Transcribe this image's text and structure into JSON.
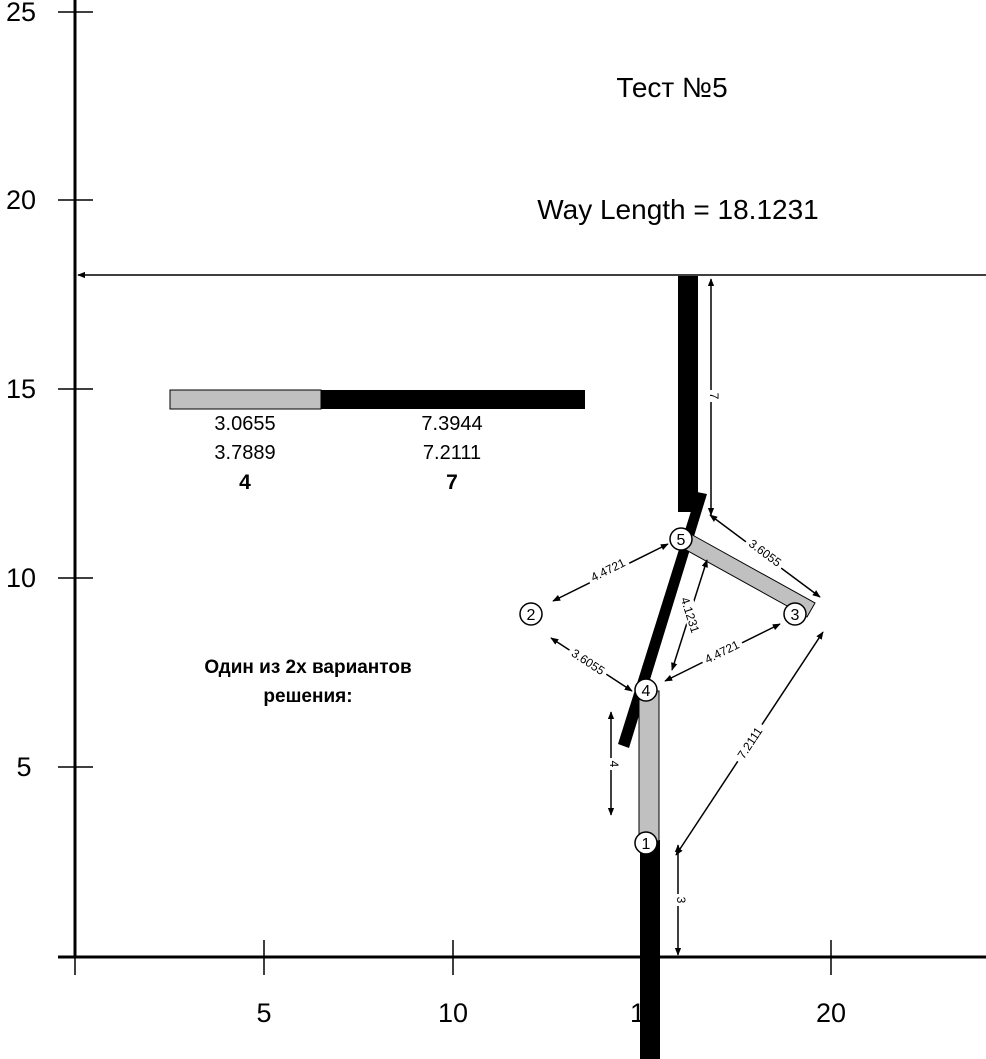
{
  "title": "Тест №5",
  "way_length": "Way Length = 18.1231",
  "caption": [
    "Один из 2х вариантов",
    "решения:"
  ],
  "axes": {
    "x_ticks": [
      "5",
      "10",
      "15",
      "20"
    ],
    "y_ticks": [
      "5",
      "10",
      "15",
      "20",
      "25"
    ]
  },
  "legend": {
    "gray": {
      "values": [
        "3.0655",
        "3.7889"
      ],
      "total": "4"
    },
    "black": {
      "values": [
        "7.3944",
        "7.2111"
      ],
      "total": "7"
    }
  },
  "nodes": [
    "1",
    "2",
    "3",
    "4",
    "5"
  ],
  "dimensions": {
    "d_3_bottom": "3",
    "d_4_left": "4",
    "d_7_top": "7",
    "d_36055_top": "3.6055",
    "d_44721_top": "4.4721",
    "d_41231": "4.1231",
    "d_44721_mid": "4.4721",
    "d_36055_left": "3.6055",
    "d_72111": "7.2111"
  },
  "colors": {
    "black": "#000000",
    "gray": "#c0c0c0"
  }
}
